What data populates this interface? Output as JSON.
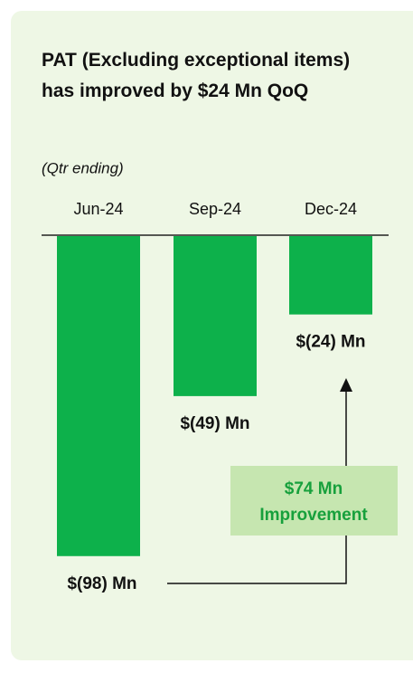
{
  "chart_data": {
    "type": "bar",
    "title": "PAT (Excluding exceptional items) has improved by $24 Mn QoQ",
    "subtitle": "(Qtr ending)",
    "categories": [
      "Jun-24",
      "Sep-24",
      "Dec-24"
    ],
    "values": [
      -98,
      -49,
      -24
    ],
    "value_labels": [
      "$(98) Mn",
      "$(49) Mn",
      "$(24) Mn"
    ],
    "color": "#0db14b",
    "annotation": [
      "$74 Mn",
      "Improvement"
    ]
  }
}
